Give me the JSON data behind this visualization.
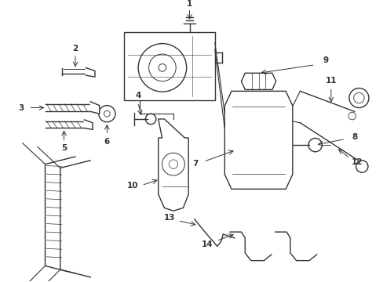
{
  "background": "#ffffff",
  "line_color": "#333333",
  "fig_width": 4.89,
  "fig_height": 3.6,
  "dpi": 100
}
